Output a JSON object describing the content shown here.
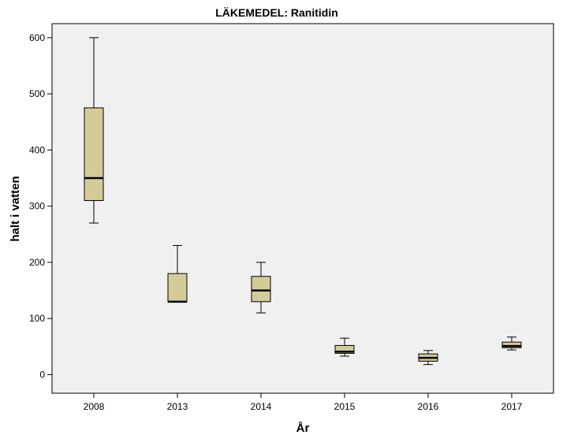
{
  "chart_data": {
    "type": "boxplot",
    "title": "LÄKEMEDEL: Ranitidin",
    "xlabel": "År",
    "ylabel": "halt i vatten",
    "categories": [
      "2008",
      "2013",
      "2014",
      "2015",
      "2016",
      "2017"
    ],
    "ylim": [
      -33,
      625
    ],
    "yticks": [
      0,
      100,
      200,
      300,
      400,
      500,
      600
    ],
    "grid": false,
    "boxes": [
      {
        "category": "2008",
        "min": 270,
        "q1": 310,
        "median": 350,
        "q3": 475,
        "max": 600
      },
      {
        "category": "2013",
        "min": 130,
        "q1": 130,
        "median": 130,
        "q3": 180,
        "max": 230
      },
      {
        "category": "2014",
        "min": 110,
        "q1": 130,
        "median": 150,
        "q3": 175,
        "max": 200
      },
      {
        "category": "2015",
        "min": 33,
        "q1": 38,
        "median": 41,
        "q3": 52,
        "max": 65
      },
      {
        "category": "2016",
        "min": 18,
        "q1": 24,
        "median": 30,
        "q3": 37,
        "max": 43
      },
      {
        "category": "2017",
        "min": 44,
        "q1": 48,
        "median": 51,
        "q3": 58,
        "max": 67
      }
    ],
    "colors": {
      "plot_background": "#f0f0f0",
      "box_fill": "#d4cc98",
      "stroke": "#000000"
    }
  }
}
